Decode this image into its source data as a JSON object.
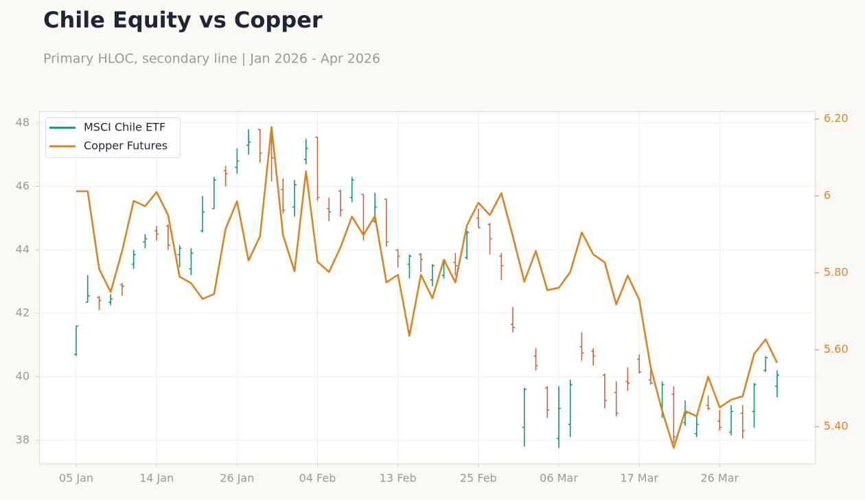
{
  "chart_data": {
    "type": "ohlc",
    "title": "Chile Equity vs Copper",
    "subtitle": "Primary HLOC, secondary line | Jan 2026 - Apr 2026",
    "categories": [
      "05 Jan",
      "06 Jan",
      "07 Jan",
      "08 Jan",
      "09 Jan",
      "12 Jan",
      "13 Jan",
      "14 Jan",
      "15 Jan",
      "16 Jan",
      "20 Jan",
      "21 Jan",
      "22 Jan",
      "23 Jan",
      "26 Jan",
      "27 Jan",
      "28 Jan",
      "29 Jan",
      "30 Jan",
      "02 Feb",
      "03 Feb",
      "04 Feb",
      "05 Feb",
      "06 Feb",
      "09 Feb",
      "10 Feb",
      "11 Feb",
      "12 Feb",
      "13 Feb",
      "17 Feb",
      "18 Feb",
      "19 Feb",
      "20 Feb",
      "23 Feb",
      "24 Feb",
      "25 Feb",
      "26 Feb",
      "27 Feb",
      "02 Mar",
      "03 Mar",
      "04 Mar",
      "05 Mar",
      "06 Mar",
      "09 Mar",
      "10 Mar",
      "11 Mar",
      "12 Mar",
      "13 Mar",
      "16 Mar",
      "17 Mar",
      "18 Mar",
      "19 Mar",
      "20 Mar",
      "23 Mar",
      "24 Mar",
      "25 Mar",
      "26 Mar",
      "27 Mar",
      "30 Mar",
      "31 Mar",
      "01 Apr",
      "02 Apr"
    ],
    "xticks": [
      "05 Jan",
      "14 Jan",
      "26 Jan",
      "04 Feb",
      "13 Feb",
      "25 Feb",
      "06 Mar",
      "17 Mar",
      "26 Mar"
    ],
    "ylim": [
      37.26,
      48.37
    ],
    "yticks": [
      38,
      40,
      42,
      44,
      46,
      48
    ],
    "y2lim": [
      5.304,
      6.22
    ],
    "y2ticks": [
      {
        "value": 5.4,
        "label": "5.40"
      },
      {
        "value": 5.6,
        "label": "5.60"
      },
      {
        "value": 5.8,
        "label": "5.80"
      },
      6,
      {
        "value": 6.2,
        "label": "6.20"
      }
    ],
    "grid": true,
    "legend": "upper left",
    "series": [
      {
        "name": "MSCI Chile ETF",
        "type": "ohlc",
        "color": "#13966b",
        "down_color": "#c4663f",
        "open": [
          40.7,
          42.35,
          42.5,
          42.35,
          42.9,
          43.55,
          44.25,
          44.6,
          44.75,
          43.85,
          43.4,
          44.6,
          45.3,
          46.5,
          46.6,
          47.3,
          47.8,
          47.6,
          45.9,
          45.35,
          46.85,
          47.55,
          45.3,
          45.85,
          45.65,
          45.75,
          44.9,
          45.6,
          44.0,
          43.55,
          43.85,
          43.05,
          43.2,
          43.6,
          43.75,
          45.0,
          44.8,
          43.8,
          41.65,
          38.4,
          40.65,
          39.65,
          38.05,
          38.5,
          40.95,
          40.8,
          40.05,
          39.5,
          39.85,
          40.55,
          39.9,
          39.1,
          39.45,
          38.55,
          38.2,
          39.1,
          38.6,
          38.25,
          38.85,
          38.9,
          40.2,
          39.7
        ],
        "high": [
          41.6,
          43.2,
          42.55,
          42.6,
          42.95,
          44.0,
          44.5,
          44.75,
          44.8,
          44.15,
          44.05,
          45.7,
          46.3,
          46.65,
          47.2,
          47.8,
          47.8,
          47.8,
          46.25,
          46.2,
          47.5,
          47.55,
          45.65,
          45.9,
          46.3,
          45.75,
          45.8,
          45.6,
          44.0,
          43.85,
          43.9,
          43.55,
          43.7,
          43.9,
          44.6,
          45.3,
          44.85,
          43.9,
          42.2,
          39.65,
          40.9,
          39.7,
          39.7,
          39.9,
          41.4,
          40.9,
          40.1,
          39.85,
          40.3,
          40.7,
          40.35,
          39.85,
          39.7,
          39.25,
          38.8,
          39.4,
          38.95,
          39.1,
          39.1,
          39.8,
          40.65,
          40.2
        ],
        "low": [
          40.65,
          42.35,
          42.1,
          42.25,
          42.55,
          43.4,
          44.05,
          44.3,
          44.0,
          43.45,
          43.2,
          44.55,
          45.3,
          46.0,
          46.4,
          47.0,
          46.75,
          46.15,
          45.15,
          45.05,
          46.7,
          45.55,
          44.9,
          45.05,
          45.5,
          44.3,
          44.85,
          44.1,
          43.45,
          43.1,
          43.3,
          42.85,
          43.1,
          43.2,
          43.7,
          44.7,
          43.85,
          43.05,
          41.4,
          37.8,
          40.2,
          38.7,
          37.75,
          38.1,
          40.5,
          40.35,
          39.0,
          38.75,
          39.55,
          40.1,
          39.75,
          38.7,
          37.9,
          38.45,
          38.1,
          38.95,
          38.3,
          38.15,
          38.05,
          38.4,
          40.15,
          39.35
        ],
        "close": [
          41.6,
          42.55,
          42.4,
          42.45,
          42.85,
          43.85,
          44.35,
          44.5,
          44.15,
          44.05,
          43.9,
          45.2,
          46.2,
          46.4,
          46.8,
          47.4,
          47.05,
          46.9,
          45.25,
          46.05,
          47.2,
          45.65,
          45.2,
          45.25,
          46.2,
          44.55,
          45.35,
          44.25,
          43.8,
          43.8,
          43.7,
          43.5,
          43.65,
          43.5,
          44.55,
          44.7,
          44.35,
          43.5,
          41.55,
          39.6,
          40.35,
          38.95,
          39.0,
          39.75,
          40.75,
          40.65,
          39.25,
          38.85,
          39.8,
          40.15,
          39.8,
          39.75,
          38.1,
          38.85,
          38.5,
          39.0,
          38.4,
          38.9,
          38.3,
          39.75,
          40.6,
          40.05
        ]
      },
      {
        "name": "Copper Futures",
        "type": "line",
        "axis": "y2",
        "color": "#d98324",
        "values": [
          6.012,
          6.012,
          5.81,
          5.75,
          5.857,
          5.987,
          5.973,
          6.01,
          5.95,
          5.79,
          5.773,
          5.732,
          5.745,
          5.914,
          5.986,
          5.832,
          5.895,
          6.179,
          5.898,
          5.804,
          6.064,
          5.829,
          5.802,
          5.866,
          5.946,
          5.898,
          5.948,
          5.775,
          5.795,
          5.636,
          5.795,
          5.734,
          5.834,
          5.775,
          5.923,
          5.982,
          5.95,
          6.007,
          5.895,
          5.777,
          5.857,
          5.755,
          5.761,
          5.802,
          5.905,
          5.848,
          5.827,
          5.718,
          5.793,
          5.73,
          5.554,
          5.441,
          5.345,
          5.441,
          5.427,
          5.53,
          5.45,
          5.47,
          5.479,
          5.589,
          5.627,
          5.566
        ]
      }
    ]
  }
}
